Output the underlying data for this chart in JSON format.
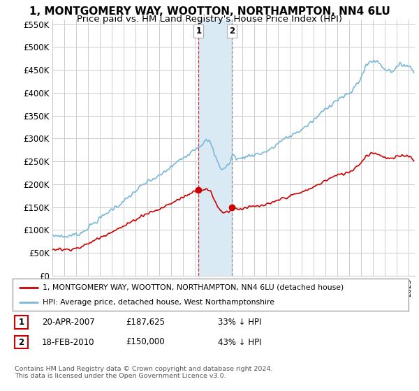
{
  "title": "1, MONTGOMERY WAY, WOOTTON, NORTHAMPTON, NN4 6LU",
  "subtitle": "Price paid vs. HM Land Registry's House Price Index (HPI)",
  "ylim": [
    0,
    560000
  ],
  "yticks": [
    0,
    50000,
    100000,
    150000,
    200000,
    250000,
    300000,
    350000,
    400000,
    450000,
    500000,
    550000
  ],
  "xlim_start": 1995.0,
  "xlim_end": 2025.5,
  "sale1_date": 2007.3,
  "sale1_price": 187625,
  "sale2_date": 2010.12,
  "sale2_price": 150000,
  "hpi_line_color": "#7ab8d8",
  "sale_line_color": "#cc0000",
  "sale_dot_color": "#cc0000",
  "shading_color": "#daeaf5",
  "legend_entry1": "1, MONTGOMERY WAY, WOOTTON, NORTHAMPTON, NN4 6LU (detached house)",
  "legend_entry2": "HPI: Average price, detached house, West Northamptonshire",
  "table_row1": [
    "1",
    "20-APR-2007",
    "£187,625",
    "33% ↓ HPI"
  ],
  "table_row2": [
    "2",
    "18-FEB-2010",
    "£150,000",
    "43% ↓ HPI"
  ],
  "footer": "Contains HM Land Registry data © Crown copyright and database right 2024.\nThis data is licensed under the Open Government Licence v3.0.",
  "bg_color": "#ffffff",
  "grid_color": "#cccccc",
  "title_fontsize": 11,
  "subtitle_fontsize": 9.5
}
